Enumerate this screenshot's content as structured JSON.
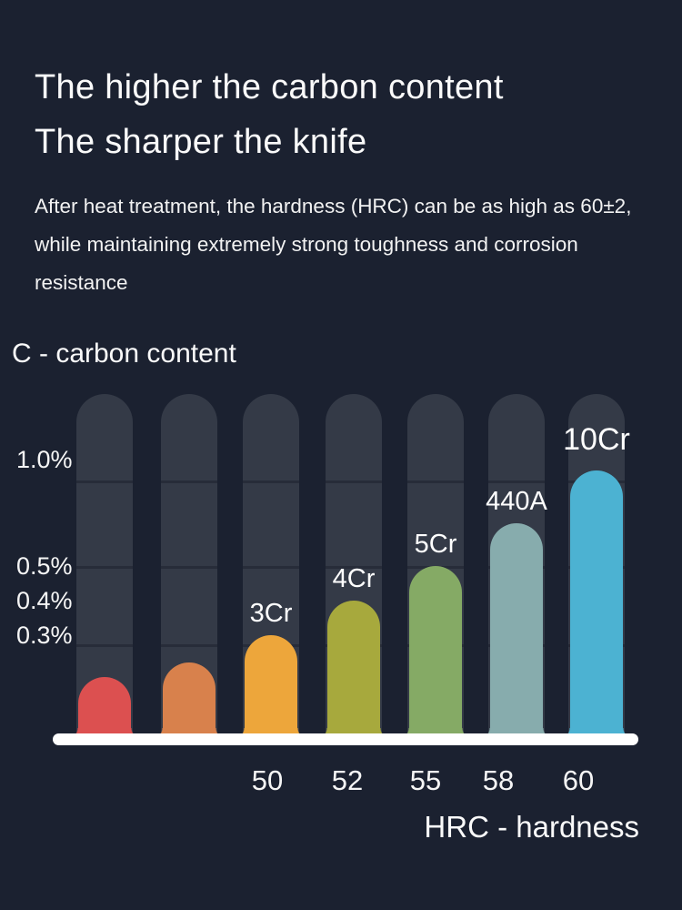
{
  "header": {
    "title_line1": "The higher the carbon content",
    "title_line2": "The sharper the knife",
    "paragraph_lines": [
      "After heat treatment, the hardness (HRC) can be as high as 60±2,",
      "while maintaining extremely strong toughness and corrosion",
      "resistance"
    ]
  },
  "chart_data": {
    "type": "bar",
    "title": "",
    "y_axis_label": "C - carbon content",
    "x_axis_label": "HRC - hardness",
    "ylabel_unit": "% carbon",
    "xlabel_unit": "HRC hardness",
    "ylim": [
      0,
      1.25
    ],
    "grid": false,
    "legend": "none",
    "y_ticks": [
      {
        "label": "1.0%",
        "value": 1.0
      },
      {
        "label": "0.5%",
        "value": 0.5
      },
      {
        "label": "0.4%",
        "value": 0.4
      },
      {
        "label": "0.3%",
        "value": 0.3
      }
    ],
    "series": [
      {
        "label": "",
        "hrc": "",
        "carbon_pct": 0.18,
        "color": "#dc5050"
      },
      {
        "label": "",
        "hrc": "",
        "carbon_pct": 0.22,
        "color": "#d8814c"
      },
      {
        "label": "3Cr",
        "hrc": "50",
        "carbon_pct": 0.3,
        "color": "#eda63b"
      },
      {
        "label": "4Cr",
        "hrc": "52",
        "carbon_pct": 0.4,
        "color": "#a7a93d"
      },
      {
        "label": "5Cr",
        "hrc": "55",
        "carbon_pct": 0.5,
        "color": "#85aa65"
      },
      {
        "label": "440A",
        "hrc": "58",
        "carbon_pct": 0.7,
        "color": "#87acad"
      },
      {
        "label": "10Cr",
        "hrc": "60",
        "carbon_pct": 0.95,
        "color": "#4cb2d2"
      }
    ],
    "colors": {
      "background": "#1b2130",
      "track": "#343a47",
      "baseline": "#ffffff",
      "text": "#ffffff"
    }
  }
}
